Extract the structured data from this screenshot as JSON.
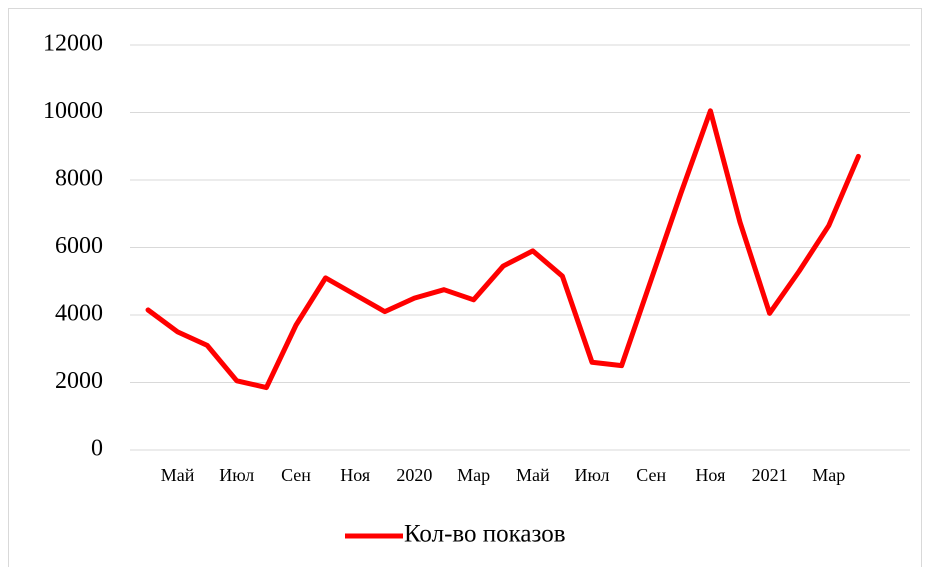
{
  "chart_data": {
    "type": "line",
    "categories": [
      null,
      "Май",
      null,
      "Июл",
      null,
      "Сен",
      null,
      "Ноя",
      null,
      "2020",
      null,
      "Мар",
      null,
      "Май",
      null,
      "Июл",
      null,
      "Сен",
      null,
      "Ноя",
      null,
      "2021",
      null,
      "Мар",
      null
    ],
    "series": [
      {
        "name": "Кол-во показов",
        "color": "#ff0000",
        "values": [
          4150,
          3500,
          3100,
          2050,
          1850,
          3700,
          5100,
          4600,
          4100,
          4500,
          4750,
          4450,
          5450,
          5900,
          5150,
          2600,
          2500,
          5050,
          7600,
          10050,
          6750,
          4050,
          5300,
          6650,
          8700
        ]
      }
    ],
    "ylim": [
      0,
      12000
    ],
    "yticks": [
      0,
      2000,
      4000,
      6000,
      8000,
      10000,
      12000
    ],
    "grid": true,
    "legend": "bottom"
  }
}
